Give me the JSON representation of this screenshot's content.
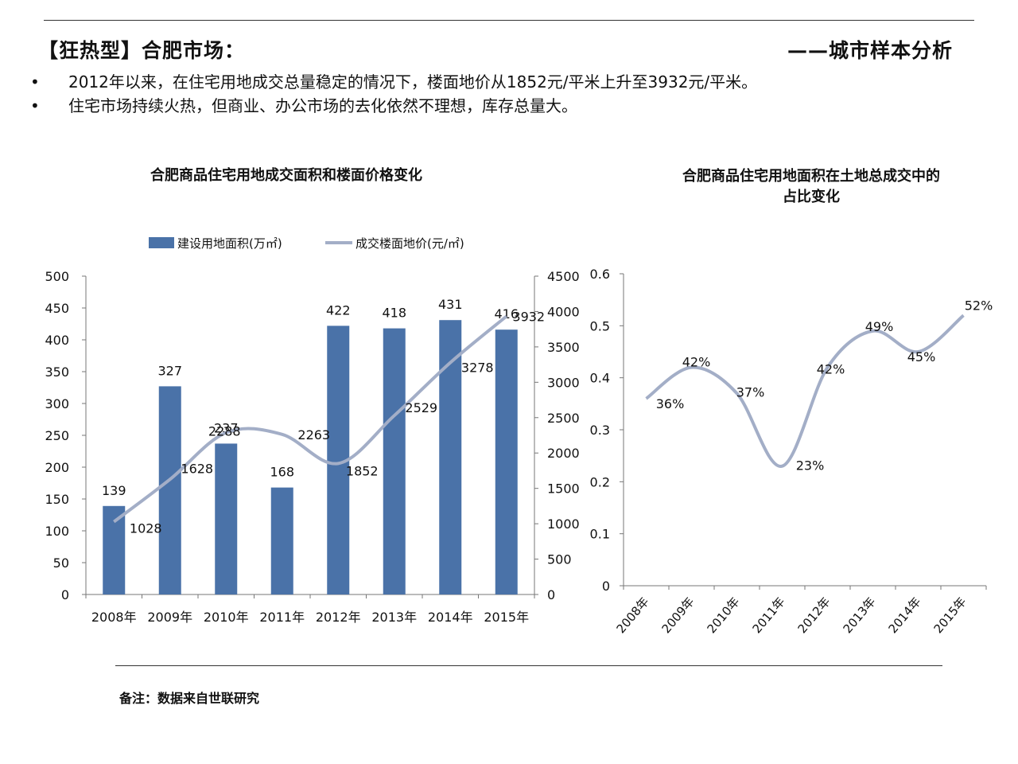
{
  "header": {
    "title": "【狂热型】合肥市场：",
    "subtitle": "——城市样本分析"
  },
  "bullets": [
    "2012年以来，在住宅用地成交总量稳定的情况下，楼面地价从1852元/平米上升至3932元/平米。",
    "住宅市场持续火热，但商业、办公市场的去化依然不理想，库存总量大。"
  ],
  "bullet_symbol": "•",
  "footnote": "备注：数据来自世联研究",
  "colors": {
    "bar": "#4a72a8",
    "line": "#a3aec7",
    "text": "#111111",
    "axis": "#777777"
  },
  "chart_data": [
    {
      "type": "bar",
      "title": "合肥商品住宅用地成交面积和楼面价格变化",
      "categories": [
        "2008年",
        "2009年",
        "2010年",
        "2011年",
        "2012年",
        "2013年",
        "2014年",
        "2015年"
      ],
      "series": [
        {
          "name": "建设用地面积(万㎡)",
          "type": "bar",
          "axis": "left",
          "values": [
            139,
            327,
            237,
            168,
            422,
            418,
            431,
            416
          ]
        },
        {
          "name": "成交楼面地价(元/㎡)",
          "type": "line",
          "axis": "right",
          "values": [
            1028,
            1628,
            2288,
            2263,
            1852,
            2529,
            3278,
            3932
          ]
        }
      ],
      "ylim_left": [
        0,
        500
      ],
      "yticks_left": [
        "0",
        "50",
        "100",
        "150",
        "200",
        "250",
        "300",
        "350",
        "400",
        "450",
        "500"
      ],
      "ylim_right": [
        0,
        4500
      ],
      "yticks_right": [
        "0",
        "500",
        "1000",
        "1500",
        "2000",
        "2500",
        "3000",
        "3500",
        "4000",
        "4500"
      ],
      "legend_position": "top",
      "grid": false
    },
    {
      "type": "line",
      "title": "合肥商品住宅用地面积在土地总成交中的\n占比变化",
      "categories": [
        "2008年",
        "2009年",
        "2010年",
        "2011年",
        "2012年",
        "2013年",
        "2014年",
        "2015年"
      ],
      "values": [
        0.36,
        0.42,
        0.37,
        0.23,
        0.42,
        0.49,
        0.45,
        0.52
      ],
      "labels": [
        "36%",
        "42%",
        "37%",
        "23%",
        "42%",
        "49%",
        "45%",
        "52%"
      ],
      "ylim": [
        0,
        0.6
      ],
      "yticks": [
        "0",
        "0.1",
        "0.2",
        "0.3",
        "0.4",
        "0.5",
        "0.6"
      ],
      "grid": false
    }
  ]
}
